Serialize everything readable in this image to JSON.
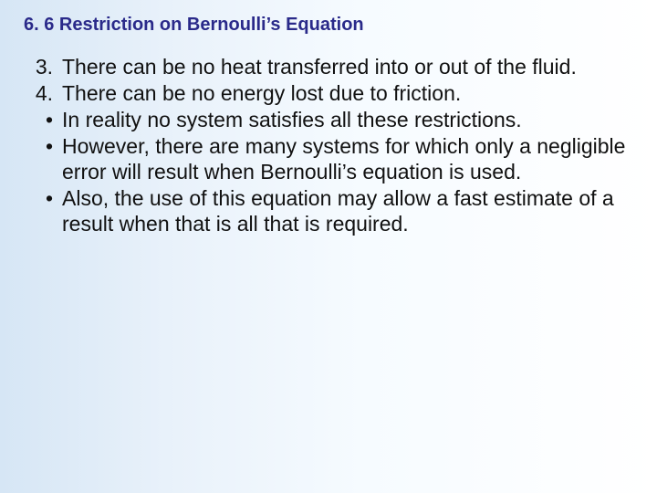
{
  "title": "6. 6 Restriction on Bernoulli’s Equation",
  "title_color": "#2a2a8a",
  "body_color": "#111111",
  "title_fontsize": 20,
  "body_fontsize": 23,
  "background_gradient": [
    "#d6e6f5",
    "#e8f1fa",
    "#f6fbff",
    "#ffffff"
  ],
  "items": [
    {
      "marker": "3.",
      "text": "There can be no heat transferred into or out of the fluid."
    },
    {
      "marker": "4.",
      "text": "There can be no energy lost due to friction."
    },
    {
      "marker": "•",
      "text": "In reality no system satisfies all these restrictions."
    },
    {
      "marker": "•",
      "text": "However, there are many systems for which only a negligible error will result when Bernoulli’s equation is used."
    },
    {
      "marker": "•",
      "text": "Also, the use of this equation may allow a fast estimate of a result when that is all that is required."
    }
  ]
}
